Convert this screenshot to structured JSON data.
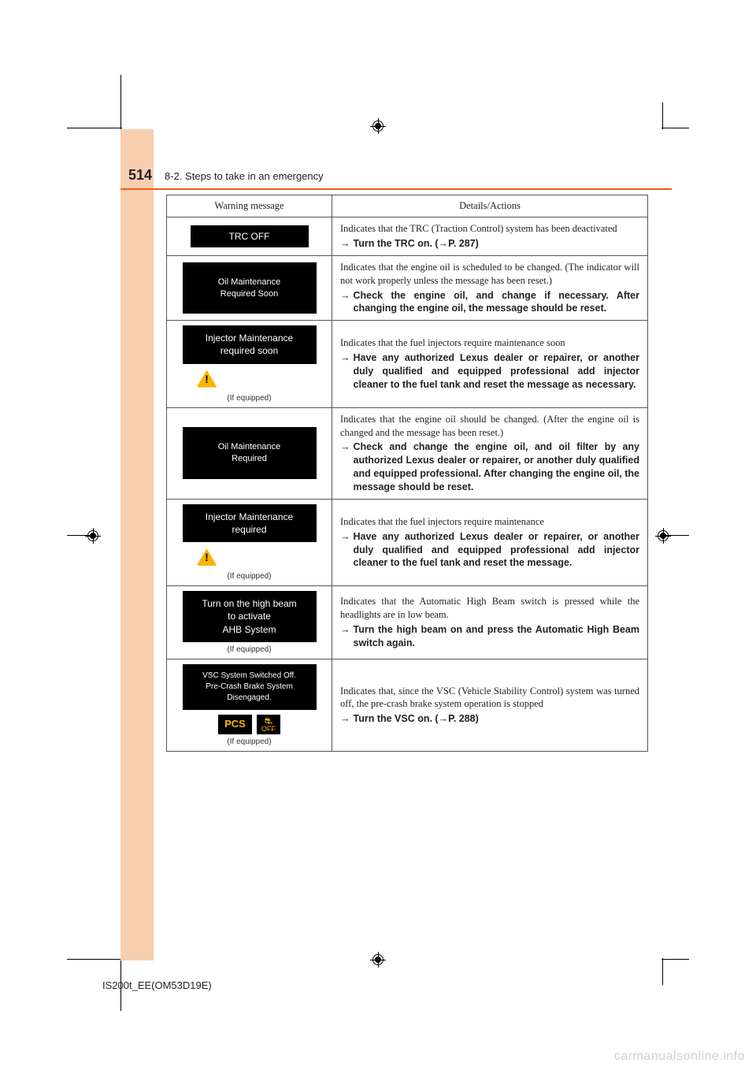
{
  "page_number": "514",
  "section_title": "8-2. Steps to take in an emergency",
  "doc_code": "IS200t_EE(OM53D19E)",
  "watermark": "carmanualsonline.info",
  "if_equipped": "(If equipped)",
  "arrow": "→",
  "colors": {
    "tab": "#f7ceb0",
    "rule": "#f15a22",
    "pcs_amber": "#f7b500"
  },
  "table": {
    "headers": {
      "col1": "Warning message",
      "col2": "Details/Actions"
    },
    "rows": [
      {
        "msg_style": "short",
        "msg_lines": [
          "TRC OFF"
        ],
        "has_tri": false,
        "if_equipped": false,
        "pcs": false,
        "lead": "Indicates that the TRC (Traction Control) system has been deactivated",
        "action_bold": "Turn the TRC on. (",
        "action_ref": "P. 287)",
        "action_rest": ""
      },
      {
        "msg_style": "big",
        "msg_lines": [
          "Oil Maintenance",
          "Required Soon"
        ],
        "has_tri": false,
        "if_equipped": false,
        "pcs": false,
        "lead": "Indicates that the engine oil is scheduled to be changed. (The indicator will not work properly unless the message has been reset.)",
        "action_bold": "Check the engine oil, and change if necessary. After changing the engine oil, the message should be reset.",
        "action_ref": "",
        "action_rest": ""
      },
      {
        "msg_style": "med",
        "msg_lines": [
          "Injector Maintenance",
          "required soon"
        ],
        "has_tri": true,
        "if_equipped": true,
        "pcs": false,
        "lead": "Indicates that the fuel injectors require maintenance soon",
        "action_bold": "Have any authorized Lexus dealer or repairer, or another duly qualified and equipped professional add injector cleaner to the fuel tank and reset the message as necessary.",
        "action_ref": "",
        "action_rest": ""
      },
      {
        "msg_style": "big",
        "msg_lines": [
          "Oil Maintenance",
          "Required"
        ],
        "has_tri": false,
        "if_equipped": false,
        "pcs": false,
        "lead": "Indicates that the engine oil should be changed. (After the engine oil is changed and the message has been reset.)",
        "action_bold": "Check and change the engine oil, and oil filter by any authorized Lexus dealer or repairer, or another duly qualified and equipped professional. After changing the engine oil, the message should be reset.",
        "action_ref": "",
        "action_rest": ""
      },
      {
        "msg_style": "med",
        "msg_lines": [
          "Injector Maintenance",
          "required"
        ],
        "has_tri": true,
        "if_equipped": true,
        "pcs": false,
        "lead": "Indicates that the fuel injectors require maintenance",
        "action_bold": "Have any authorized Lexus dealer or repairer, or another duly qualified and equipped professional add injector cleaner to the fuel tank and reset the message.",
        "action_ref": "",
        "action_rest": ""
      },
      {
        "msg_style": "med",
        "msg_lines": [
          "Turn on the high beam",
          "to activate",
          "AHB System"
        ],
        "has_tri": false,
        "if_equipped": true,
        "pcs": false,
        "lead": "Indicates that the Automatic High Beam switch is pressed while the headlights are in low beam.",
        "action_bold": "Turn the high beam on and press the Automatic High Beam switch again.",
        "action_ref": "",
        "action_rest": ""
      },
      {
        "msg_style": "sm",
        "msg_lines": [
          "VSC System Switched Off.",
          "Pre-Crash Brake System",
          "Disengaged."
        ],
        "has_tri": false,
        "if_equipped": true,
        "pcs": true,
        "pcs_label": "PCS",
        "off_label": "OFF",
        "lead": "Indicates that, since the VSC (Vehicle Stability Control) system was turned off, the pre-crash brake system operation is stopped",
        "action_bold": "Turn the VSC on. (",
        "action_ref": "P. 288)",
        "action_rest": ""
      }
    ]
  }
}
